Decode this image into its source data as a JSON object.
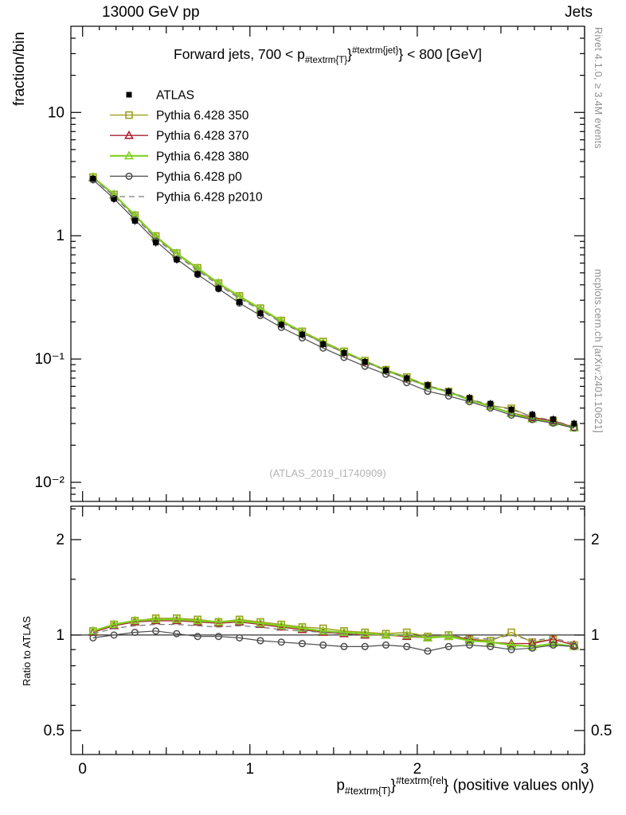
{
  "header": {
    "left": "13000 GeV pp",
    "right": "Jets"
  },
  "side_texts": {
    "top_right": "Rivet 4.1.0, ≥ 3.4M events",
    "bottom_right": "mcplots.cern.ch [arXiv:2401.10621]"
  },
  "watermark": "(ATLAS_2019_I1740909)",
  "title_parts": [
    {
      "text": "Forward jets, 700 < p",
      "style": "normal"
    },
    {
      "text": "#textrm{T}",
      "style": "sub"
    },
    {
      "text": "}",
      "style": "normal"
    },
    {
      "text": "#textrm{jet}",
      "style": "sup"
    },
    {
      "text": "} < 800 [GeV]",
      "style": "normal"
    }
  ],
  "xlabel_parts": [
    {
      "text": "p",
      "style": "normal"
    },
    {
      "text": "#textrm{T}",
      "style": "sub"
    },
    {
      "text": "}",
      "style": "normal"
    },
    {
      "text": "#textrm{rel",
      "style": "sup"
    },
    {
      "text": "} (positive values only)",
      "style": "normal"
    }
  ],
  "chart_data": {
    "type": "line",
    "title": "Forward jets, 700 < pT^jet < 800 [GeV]",
    "x": [
      0.0625,
      0.1875,
      0.3125,
      0.4375,
      0.5625,
      0.6875,
      0.8125,
      0.9375,
      1.0625,
      1.1875,
      1.3125,
      1.4375,
      1.5625,
      1.6875,
      1.8125,
      1.9375,
      2.0625,
      2.1875,
      2.3125,
      2.4375,
      2.5625,
      2.6875,
      2.8125,
      2.9375
    ],
    "series": [
      {
        "name": "ATLAS",
        "color": "#000000",
        "marker": "square-filled",
        "line": "none",
        "lw": 1.2,
        "values": [
          2.9,
          2.0,
          1.32,
          0.88,
          0.64,
          0.49,
          0.375,
          0.29,
          0.235,
          0.19,
          0.158,
          0.132,
          0.112,
          0.095,
          0.081,
          0.07,
          0.0615,
          0.0545,
          0.0485,
          0.0435,
          0.039,
          0.0355,
          0.0325,
          0.03
        ]
      },
      {
        "name": "Pythia 6.428 350",
        "color": "#a0a020",
        "marker": "square-open",
        "line": "solid",
        "lw": 1.4,
        "ratio": [
          1.03,
          1.08,
          1.11,
          1.13,
          1.13,
          1.12,
          1.1,
          1.12,
          1.1,
          1.08,
          1.06,
          1.05,
          1.03,
          1.02,
          1.01,
          1.02,
          0.99,
          1.0,
          0.97,
          0.96,
          1.02,
          0.95,
          0.97,
          0.93
        ]
      },
      {
        "name": "Pythia 6.428 370",
        "color": "#aa2233",
        "marker": "triangle-open",
        "line": "solid",
        "lw": 1.4,
        "ratio": [
          1.02,
          1.07,
          1.1,
          1.11,
          1.11,
          1.1,
          1.09,
          1.1,
          1.08,
          1.06,
          1.04,
          1.02,
          1.01,
          1.0,
          1.0,
          0.99,
          0.98,
          0.99,
          0.97,
          0.95,
          0.94,
          0.94,
          0.97,
          0.93
        ]
      },
      {
        "name": "Pythia 6.428 380",
        "color": "#80d020",
        "marker": "triangle-open",
        "line": "solid",
        "lw": 2.2,
        "ratio": [
          1.03,
          1.08,
          1.11,
          1.12,
          1.12,
          1.11,
          1.1,
          1.11,
          1.09,
          1.07,
          1.05,
          1.03,
          1.02,
          1.01,
          1.0,
          1.0,
          0.98,
          0.99,
          0.96,
          0.95,
          0.93,
          0.92,
          0.94,
          0.92
        ]
      },
      {
        "name": "Pythia 6.428 p0",
        "color": "#4d4d4d",
        "marker": "circle-open",
        "line": "solid",
        "lw": 1.2,
        "ratio": [
          0.98,
          1.0,
          1.02,
          1.03,
          1.01,
          0.99,
          0.99,
          0.98,
          0.96,
          0.95,
          0.94,
          0.93,
          0.92,
          0.92,
          0.93,
          0.92,
          0.89,
          0.92,
          0.93,
          0.92,
          0.9,
          0.91,
          0.93,
          0.92
        ]
      },
      {
        "name": "Pythia 6.428 p2010",
        "color": "#7a7a7a",
        "marker": "none",
        "line": "dash",
        "lw": 1.3,
        "ratio": [
          1.01,
          1.05,
          1.07,
          1.08,
          1.08,
          1.07,
          1.06,
          1.07,
          1.06,
          1.04,
          1.03,
          1.02,
          1.01,
          1.0,
          1.0,
          1.0,
          0.99,
          1.0,
          0.98,
          0.97,
          1.0,
          0.96,
          0.98,
          0.94
        ]
      }
    ],
    "x_axis": {
      "xlim": [
        -0.07,
        3.0
      ],
      "ticks": [
        0,
        1,
        2,
        3
      ],
      "minor_step": 0.1
    },
    "top_axis": {
      "scale": "log",
      "ylim": [
        0.007,
        50
      ],
      "ylabel": "fraction/bin",
      "yticks": [
        {
          "v": 10,
          "label": "10"
        },
        {
          "v": 1,
          "label": "1"
        },
        {
          "v": 0.1,
          "label": "10⁻¹"
        },
        {
          "v": 0.01,
          "label": "10⁻²"
        }
      ]
    },
    "ratio_axis": {
      "scale": "log",
      "ylim": [
        0.42,
        2.55
      ],
      "ylabel": "Ratio to ATLAS",
      "yticks": [
        {
          "v": 2,
          "label": "2"
        },
        {
          "v": 1,
          "label": "1"
        },
        {
          "v": 0.5,
          "label": "0.5"
        }
      ]
    },
    "legend_position": "top-left-inside",
    "grid": false
  }
}
